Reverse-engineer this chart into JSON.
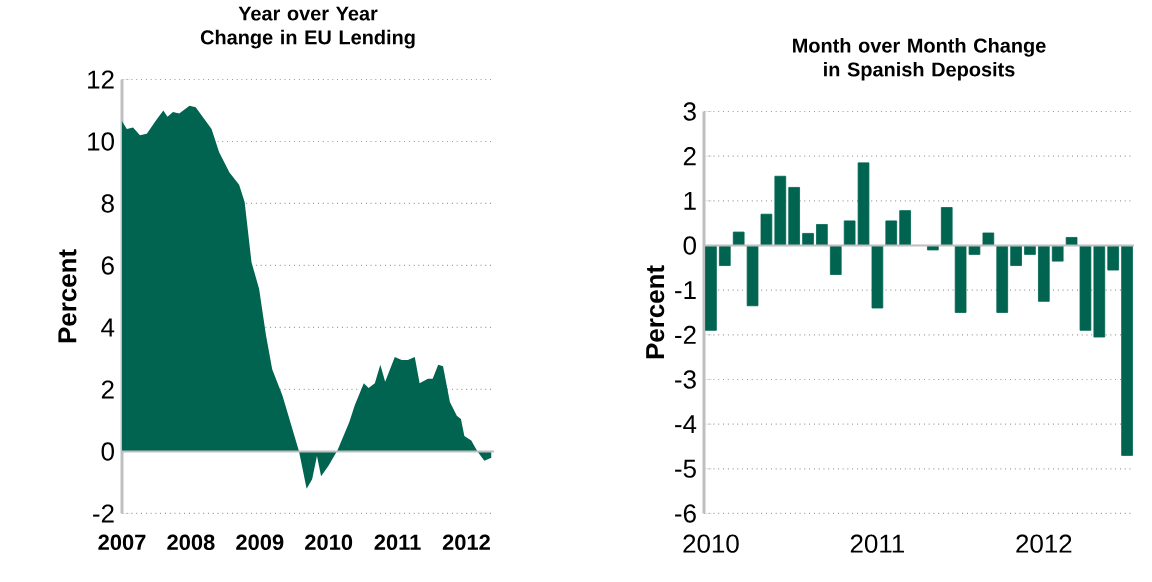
{
  "chart_data": [
    {
      "type": "area",
      "title": "Year over Year Change in EU Lending",
      "ylabel": "Percent",
      "x": [
        2007.0,
        2007.07,
        2007.16,
        2007.26,
        2007.36,
        2007.5,
        2007.6,
        2007.66,
        2007.74,
        2007.83,
        2007.98,
        2008.07,
        2008.17,
        2008.3,
        2008.41,
        2008.56,
        2008.7,
        2008.78,
        2008.88,
        2008.99,
        2009.09,
        2009.18,
        2009.33,
        2009.47,
        2009.57,
        2009.68,
        2009.76,
        2009.83,
        2009.89,
        2010.0,
        2010.13,
        2010.3,
        2010.38,
        2010.51,
        2010.58,
        2010.67,
        2010.75,
        2010.82,
        2010.96,
        2011.06,
        2011.15,
        2011.25,
        2011.32,
        2011.44,
        2011.51,
        2011.59,
        2011.66,
        2011.76,
        2011.86,
        2011.92,
        2011.97,
        2012.07,
        2012.16,
        2012.26,
        2012.36
      ],
      "series": [
        {
          "color": "#006450",
          "values": [
            10.65,
            10.4,
            10.45,
            10.2,
            10.25,
            10.7,
            11.0,
            10.8,
            10.95,
            10.9,
            11.15,
            11.1,
            10.8,
            10.4,
            9.65,
            9.0,
            8.6,
            8.05,
            6.1,
            5.25,
            3.75,
            2.65,
            1.8,
            0.75,
            0.0,
            -1.2,
            -0.9,
            -0.15,
            -0.8,
            -0.45,
            0.05,
            0.95,
            1.5,
            2.2,
            2.05,
            2.2,
            2.8,
            2.25,
            3.05,
            2.95,
            2.95,
            3.05,
            2.2,
            2.35,
            2.35,
            2.8,
            2.75,
            1.6,
            1.15,
            1.05,
            0.5,
            0.35,
            0.0,
            -0.3,
            -0.2
          ]
        }
      ],
      "xlim": [
        2007,
        2012.4
      ],
      "xticks": [
        2007,
        2008,
        2009,
        2010,
        2011,
        2012
      ],
      "ylim": [
        -2,
        12
      ],
      "yticks": [
        -2,
        0,
        2,
        4,
        6,
        8,
        10,
        12
      ],
      "grid": "y"
    },
    {
      "type": "bar",
      "title": "Month over Month Change in Spanish Deposits",
      "ylabel": "Percent",
      "categories": [
        "2010",
        null,
        null,
        null,
        null,
        null,
        null,
        null,
        null,
        null,
        null,
        null,
        "2011",
        null,
        null,
        null,
        null,
        null,
        null,
        null,
        null,
        null,
        null,
        null,
        "2012",
        null,
        null,
        null,
        null,
        null,
        null
      ],
      "series": [
        {
          "color": "#006450",
          "values": [
            -1.9,
            -0.45,
            0.3,
            -1.35,
            0.7,
            1.55,
            1.3,
            0.27,
            0.47,
            -0.65,
            0.55,
            1.85,
            -1.4,
            0.55,
            0.78,
            0.0,
            -0.1,
            0.85,
            -1.5,
            -0.2,
            0.28,
            -1.5,
            -0.45,
            -0.2,
            -1.25,
            -0.35,
            0.18,
            -1.9,
            -2.05,
            -0.55,
            -4.7
          ]
        }
      ],
      "ylim": [
        -6,
        3
      ],
      "yticks": [
        -6,
        -5,
        -4,
        -3,
        -2,
        -1,
        0,
        1,
        2,
        3
      ],
      "grid": "y"
    }
  ]
}
